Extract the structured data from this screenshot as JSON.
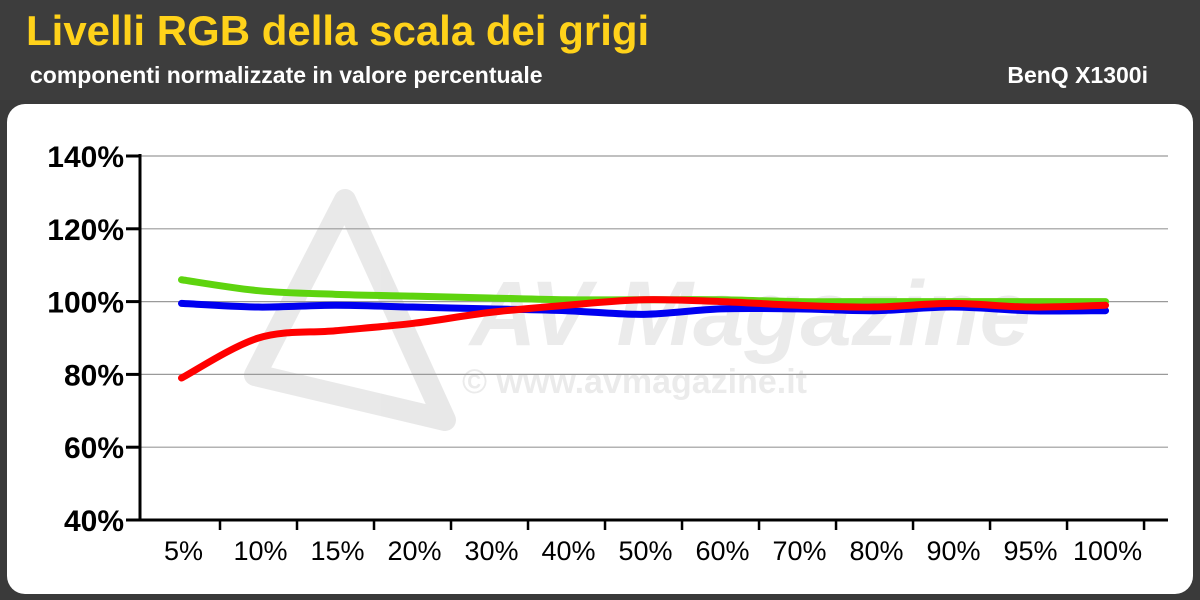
{
  "header": {
    "title": "Livelli RGB della scala dei grigi",
    "subtitle": "componenti normalizzate in valore percentuale",
    "brand": "BenQ X1300i"
  },
  "colors": {
    "background": "#3a3a3a",
    "title": "#ffd21a",
    "panel": "#ffffff",
    "grid": "#9a9a9a"
  },
  "watermark": {
    "text": "© www.avmagazine.it",
    "logo": "AV Magazine"
  },
  "chart_data": {
    "type": "line",
    "title": "Livelli RGB della scala dei grigi",
    "subtitle": "componenti normalizzate in valore percentuale",
    "xlabel": "",
    "ylabel": "",
    "categories": [
      "5%",
      "10%",
      "15%",
      "20%",
      "30%",
      "40%",
      "50%",
      "60%",
      "70%",
      "80%",
      "90%",
      "95%",
      "100%"
    ],
    "y_tick_labels": [
      "40%",
      "60%",
      "80%",
      "100%",
      "120%",
      "140%"
    ],
    "ylim": [
      40,
      140
    ],
    "grid": true,
    "legend": "none",
    "series": [
      {
        "color": "#5ed40f",
        "values": [
          106,
          103,
          102,
          101.5,
          101,
          100.5,
          100.5,
          100.5,
          100,
          100,
          100,
          100,
          100
        ]
      },
      {
        "color": "#0000f0",
        "values": [
          99.5,
          98.5,
          99,
          98.5,
          98,
          97.5,
          96.5,
          98,
          98,
          97.5,
          98.5,
          97.5,
          97.5
        ]
      },
      {
        "color": "#ff0000",
        "values": [
          79,
          90,
          92,
          94,
          97,
          99,
          100.5,
          100,
          99,
          98.5,
          99.5,
          98.5,
          99
        ]
      }
    ]
  }
}
